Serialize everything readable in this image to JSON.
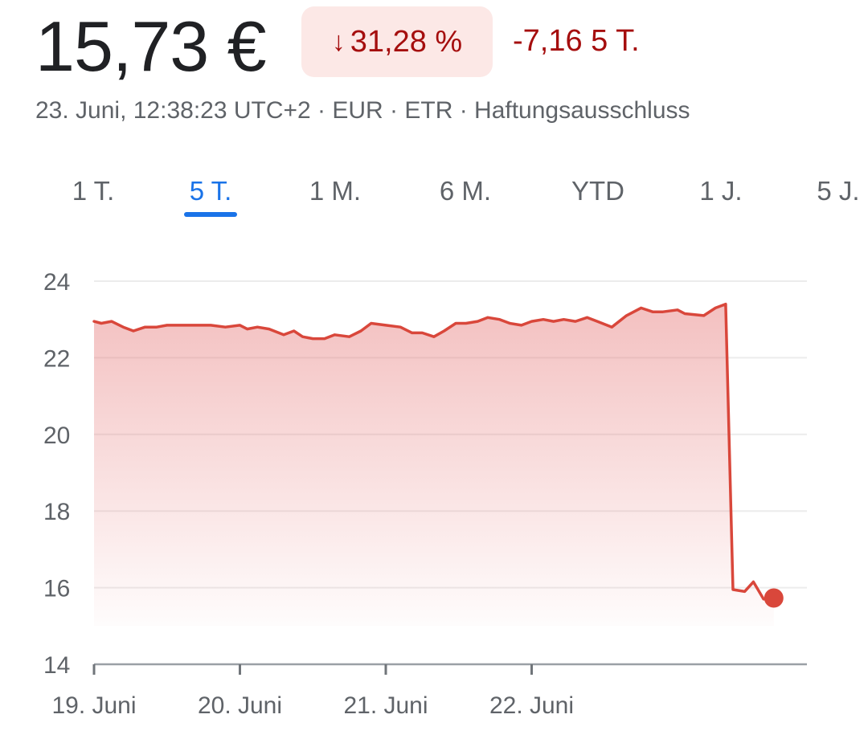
{
  "quote": {
    "price": "15,73 €",
    "change_percent": "31,28 %",
    "change_direction_icon": "arrow-down-icon",
    "change_absolute": "-7,16 5 T.",
    "meta": "23. Juni, 12:38:23 UTC+2 · EUR · ETR · Haftungsausschluss"
  },
  "range_tabs": [
    {
      "label": "1 T.",
      "active": false
    },
    {
      "label": "5 T.",
      "active": true
    },
    {
      "label": "1 M.",
      "active": false
    },
    {
      "label": "6 M.",
      "active": false
    },
    {
      "label": "YTD",
      "active": false
    },
    {
      "label": "1 J.",
      "active": false
    },
    {
      "label": "5 J.",
      "active": false
    }
  ],
  "colors": {
    "negative": "#a50e0e",
    "negative_bg": "#fce8e6",
    "line": "#d9473b",
    "active_tab": "#1a73e8"
  },
  "chart_data": {
    "type": "area",
    "y_ticks": [
      "24",
      "22",
      "20",
      "18",
      "16",
      "14"
    ],
    "ylim": [
      14,
      24
    ],
    "x_ticks": [
      "19. Juni",
      "20. Juni",
      "21. Juni",
      "22. Juni"
    ],
    "xlim": [
      0,
      4.9
    ],
    "grid": true,
    "series": [
      {
        "x": [
          0,
          0.05,
          0.12,
          0.2,
          0.27,
          0.35,
          0.43,
          0.5,
          0.6,
          0.7,
          0.8,
          0.9,
          1.0,
          1.05,
          1.12,
          1.2,
          1.3,
          1.37,
          1.43,
          1.5,
          1.58,
          1.65,
          1.75,
          1.83,
          1.9,
          2.0,
          2.1,
          2.18,
          2.25,
          2.33,
          2.4,
          2.48,
          2.55,
          2.63,
          2.7,
          2.78,
          2.85,
          2.93,
          3.0,
          3.08,
          3.15,
          3.22,
          3.3,
          3.38,
          3.45,
          3.55,
          3.65,
          3.75,
          3.83,
          3.9,
          4.0,
          4.05,
          4.18,
          4.26,
          4.33,
          4.38,
          4.46,
          4.52,
          4.59,
          4.66
        ],
        "y": [
          22.95,
          22.9,
          22.95,
          22.8,
          22.7,
          22.8,
          22.8,
          22.85,
          22.85,
          22.85,
          22.85,
          22.8,
          22.85,
          22.75,
          22.8,
          22.75,
          22.6,
          22.7,
          22.55,
          22.5,
          22.5,
          22.6,
          22.55,
          22.7,
          22.9,
          22.85,
          22.8,
          22.65,
          22.65,
          22.55,
          22.7,
          22.9,
          22.9,
          22.95,
          23.05,
          23.0,
          22.9,
          22.85,
          22.95,
          23.0,
          22.95,
          23.0,
          22.95,
          23.05,
          22.95,
          22.8,
          23.1,
          23.3,
          23.2,
          23.2,
          23.25,
          23.15,
          23.1,
          23.3,
          23.4,
          15.95,
          15.9,
          16.15,
          15.7,
          15.73
        ]
      }
    ]
  }
}
